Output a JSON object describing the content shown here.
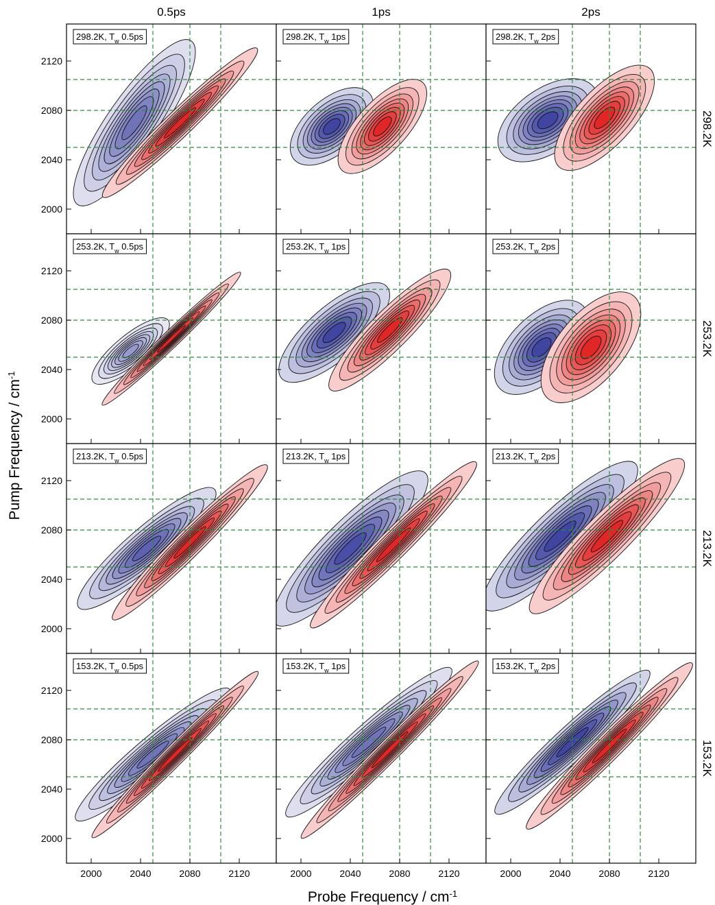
{
  "chart_data": {
    "type": "heatmap",
    "description_of_marks": "2D IR spectra, filled contours: blue = negative (bleach), red = positive (excited-state absorption)",
    "xlabel": "Probe Frequency / cm",
    "xlabel_sup": "-1",
    "ylabel": "Pump Frequency / cm",
    "ylabel_sup": "-1",
    "xlim": [
      1980,
      2150
    ],
    "ylim": [
      1980,
      2150
    ],
    "xticks": [
      2000,
      2040,
      2080,
      2120
    ],
    "yticks": [
      2000,
      2040,
      2080,
      2120
    ],
    "column_titles": [
      "0.5ps",
      "1ps",
      "2ps"
    ],
    "row_titles": [
      "298.2K",
      "253.2K",
      "213.2K",
      "153.2K"
    ],
    "guide_lines_x": [
      2050,
      2080,
      2105
    ],
    "guide_lines_y": [
      2050,
      2080,
      2105
    ],
    "colors": {
      "negative": "#3a3f9e",
      "positive": "#e0201f",
      "guide": "#2e8b3e"
    },
    "panels": [
      {
        "label_temp": "298.2K",
        "label_wait": "0.5ps",
        "row": 0,
        "col": 0,
        "neg": {
          "x": 2035,
          "y": 2070,
          "sx": 22,
          "sy": 30,
          "rho": 0.85,
          "amp": 0.75
        },
        "pos": {
          "x": 2072,
          "y": 2070,
          "sx": 28,
          "sy": 27,
          "rho": 0.97,
          "amp": 1.0
        }
      },
      {
        "label_temp": "298.2K",
        "label_wait": "1ps",
        "row": 0,
        "col": 1,
        "neg": {
          "x": 2025,
          "y": 2067,
          "sx": 15,
          "sy": 14,
          "rho": 0.55,
          "amp": 1.0
        },
        "pos": {
          "x": 2066,
          "y": 2067,
          "sx": 16,
          "sy": 17,
          "rho": 0.7,
          "amp": 1.0
        }
      },
      {
        "label_temp": "298.2K",
        "label_wait": "2ps",
        "row": 0,
        "col": 2,
        "neg": {
          "x": 2030,
          "y": 2072,
          "sx": 18,
          "sy": 15,
          "rho": 0.5,
          "amp": 1.0
        },
        "pos": {
          "x": 2076,
          "y": 2074,
          "sx": 18,
          "sy": 19,
          "rho": 0.7,
          "amp": 1.0
        }
      },
      {
        "label_temp": "253.2K",
        "label_wait": "0.5ps",
        "row": 1,
        "col": 0,
        "neg": {
          "x": 2032,
          "y": 2055,
          "sx": 14,
          "sy": 12,
          "rho": 0.8,
          "amp": 0.55
        },
        "pos": {
          "x": 2065,
          "y": 2065,
          "sx": 25,
          "sy": 24,
          "rho": 0.985,
          "amp": 1.0
        }
      },
      {
        "label_temp": "253.2K",
        "label_wait": "1ps",
        "row": 1,
        "col": 1,
        "neg": {
          "x": 2027,
          "y": 2070,
          "sx": 20,
          "sy": 18,
          "rho": 0.75,
          "amp": 1.0
        },
        "pos": {
          "x": 2072,
          "y": 2072,
          "sx": 22,
          "sy": 22,
          "rho": 0.9,
          "amp": 1.0
        }
      },
      {
        "label_temp": "253.2K",
        "label_wait": "2ps",
        "row": 1,
        "col": 2,
        "neg": {
          "x": 2025,
          "y": 2058,
          "sx": 17,
          "sy": 17,
          "rho": 0.55,
          "amp": 1.0
        },
        "pos": {
          "x": 2065,
          "y": 2058,
          "sx": 18,
          "sy": 20,
          "rho": 0.6,
          "amp": 1.0
        }
      },
      {
        "label_temp": "213.2K",
        "label_wait": "0.5ps",
        "row": 2,
        "col": 0,
        "neg": {
          "x": 2045,
          "y": 2065,
          "sx": 25,
          "sy": 22,
          "rho": 0.9,
          "amp": 0.85
        },
        "pos": {
          "x": 2080,
          "y": 2070,
          "sx": 28,
          "sy": 28,
          "rho": 0.97,
          "amp": 1.0
        }
      },
      {
        "label_temp": "213.2K",
        "label_wait": "1ps",
        "row": 2,
        "col": 1,
        "neg": {
          "x": 2040,
          "y": 2065,
          "sx": 28,
          "sy": 28,
          "rho": 0.88,
          "amp": 0.95
        },
        "pos": {
          "x": 2075,
          "y": 2068,
          "sx": 30,
          "sy": 30,
          "rho": 0.97,
          "amp": 1.0
        }
      },
      {
        "label_temp": "213.2K",
        "label_wait": "2ps",
        "row": 2,
        "col": 2,
        "neg": {
          "x": 2040,
          "y": 2075,
          "sx": 28,
          "sy": 27,
          "rho": 0.88,
          "amp": 1.0
        },
        "pos": {
          "x": 2078,
          "y": 2075,
          "sx": 28,
          "sy": 28,
          "rho": 0.92,
          "amp": 1.0
        }
      },
      {
        "label_temp": "153.2K",
        "label_wait": "0.5ps",
        "row": 3,
        "col": 0,
        "neg": {
          "x": 2050,
          "y": 2068,
          "sx": 28,
          "sy": 24,
          "rho": 0.94,
          "amp": 0.75
        },
        "pos": {
          "x": 2068,
          "y": 2068,
          "sx": 30,
          "sy": 30,
          "rho": 0.985,
          "amp": 1.0
        }
      },
      {
        "label_temp": "153.2K",
        "label_wait": "1ps",
        "row": 3,
        "col": 1,
        "neg": {
          "x": 2055,
          "y": 2078,
          "sx": 30,
          "sy": 27,
          "rho": 0.95,
          "amp": 0.75
        },
        "pos": {
          "x": 2072,
          "y": 2072,
          "sx": 32,
          "sy": 32,
          "rho": 0.985,
          "amp": 1.0
        }
      },
      {
        "label_temp": "153.2K",
        "label_wait": "2ps",
        "row": 3,
        "col": 2,
        "neg": {
          "x": 2050,
          "y": 2078,
          "sx": 28,
          "sy": 26,
          "rho": 0.95,
          "amp": 1.0
        },
        "pos": {
          "x": 2080,
          "y": 2075,
          "sx": 30,
          "sy": 30,
          "rho": 0.975,
          "amp": 1.0
        }
      }
    ]
  }
}
